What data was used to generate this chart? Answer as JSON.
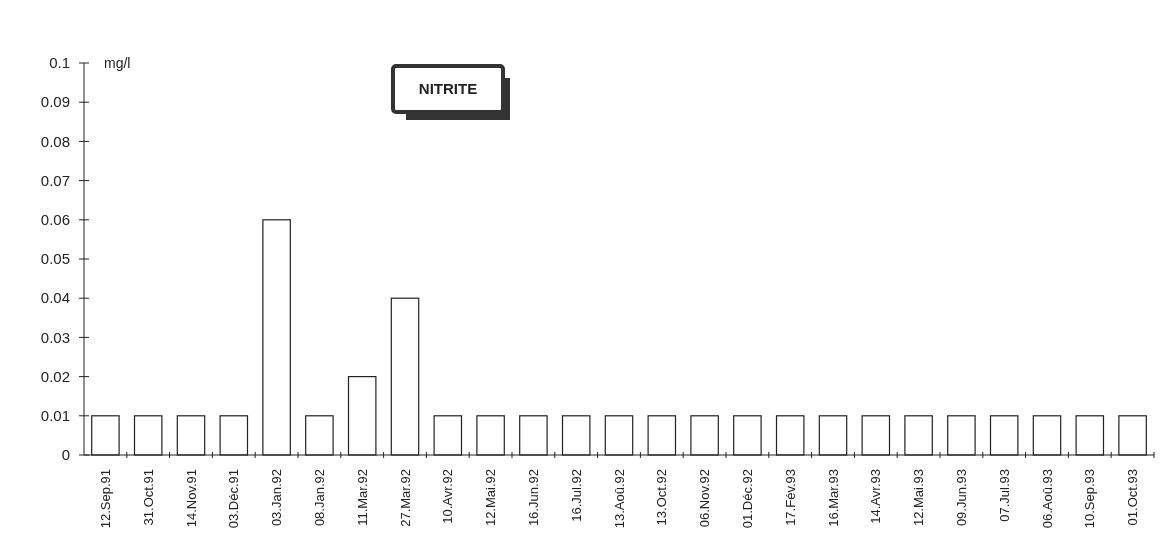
{
  "chart_data": {
    "type": "bar",
    "title": "NITRITE",
    "ylabel": "mg/l",
    "categories": [
      "12.Sep.91",
      "31.Oct.91",
      "14.Nov.91",
      "03.Déc.91",
      "03.Jan.92",
      "08.Jan.92",
      "11.Mar.92",
      "27.Mar.92",
      "10.Avr.92",
      "12.Mai.92",
      "16.Jun.92",
      "16.Jul.92",
      "13.Aoû.92",
      "13.Oct.92",
      "06.Nov.92",
      "01.Déc.92",
      "17.Fév.93",
      "16.Mar.93",
      "14.Avr.93",
      "12.Mai.93",
      "09.Jun.93",
      "07.Jul.93",
      "06.Aoû.93",
      "10.Sep.93",
      "01.Oct.93"
    ],
    "values": [
      0.01,
      0.01,
      0.01,
      0.01,
      0.06,
      0.01,
      0.02,
      0.04,
      0.01,
      0.01,
      0.01,
      0.01,
      0.01,
      0.01,
      0.01,
      0.01,
      0.01,
      0.01,
      0.01,
      0.01,
      0.01,
      0.01,
      0.01,
      0.01,
      0.01
    ],
    "color": "#ffffff",
    "ylim": [
      0,
      0.1
    ],
    "yticks": [
      {
        "value": 0,
        "label": "0"
      },
      0.01,
      0.02,
      0.03,
      0.04,
      0.05,
      0.06,
      0.07,
      0.08,
      0.09,
      0.1
    ],
    "grid": false
  }
}
